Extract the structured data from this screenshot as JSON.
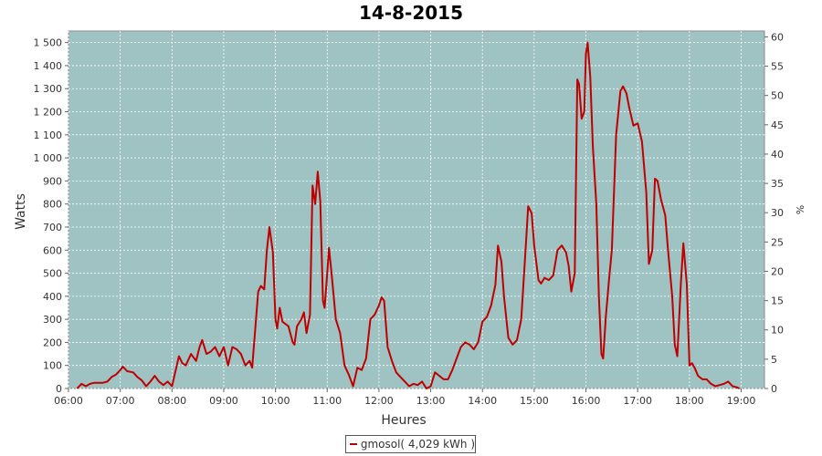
{
  "chart_data": {
    "type": "line",
    "title": "14-8-2015",
    "xlabel": "Heures",
    "ylabel": "Watts",
    "ylabel_right": "%",
    "ylim": [
      0,
      1550
    ],
    "y2lim": [
      0,
      61
    ],
    "xlim_hours": [
      6.0,
      19.45
    ],
    "grid": true,
    "background": "#9fc3c3",
    "line_color": "#c00000",
    "x_ticks": [
      "06:00",
      "07:00",
      "08:00",
      "09:00",
      "10:00",
      "11:00",
      "12:00",
      "13:00",
      "14:00",
      "15:00",
      "16:00",
      "17:00",
      "18:00",
      "19:00"
    ],
    "y_ticks": [
      {
        "value": 0,
        "label": "0"
      },
      {
        "value": 100,
        "label": "100"
      },
      {
        "value": 200,
        "label": "200"
      },
      {
        "value": 300,
        "label": "300"
      },
      {
        "value": 400,
        "label": "400"
      },
      {
        "value": 500,
        "label": "500"
      },
      {
        "value": 600,
        "label": "600"
      },
      {
        "value": 700,
        "label": "700"
      },
      {
        "value": 800,
        "label": "800"
      },
      {
        "value": 900,
        "label": "900"
      },
      {
        "value": 1000,
        "label": "1 000"
      },
      {
        "value": 1100,
        "label": "1 100"
      },
      {
        "value": 1200,
        "label": "1 200"
      },
      {
        "value": 1300,
        "label": "1 300"
      },
      {
        "value": 1400,
        "label": "1 400"
      },
      {
        "value": 1500,
        "label": "1 500"
      }
    ],
    "y2_ticks": [
      "0",
      "5",
      "10",
      "15",
      "20",
      "25",
      "30",
      "35",
      "40",
      "45",
      "50",
      "55",
      "60"
    ],
    "series": [
      {
        "name": "gmosol( 4,029 kWh )",
        "points": [
          [
            "06:10",
            0
          ],
          [
            "06:15",
            20
          ],
          [
            "06:20",
            10
          ],
          [
            "06:25",
            20
          ],
          [
            "06:30",
            25
          ],
          [
            "06:40",
            25
          ],
          [
            "06:45",
            30
          ],
          [
            "06:50",
            50
          ],
          [
            "06:55",
            60
          ],
          [
            "07:00",
            80
          ],
          [
            "07:03",
            95
          ],
          [
            "07:08",
            75
          ],
          [
            "07:15",
            70
          ],
          [
            "07:20",
            50
          ],
          [
            "07:25",
            35
          ],
          [
            "07:30",
            10
          ],
          [
            "07:35",
            30
          ],
          [
            "07:40",
            55
          ],
          [
            "07:45",
            30
          ],
          [
            "07:50",
            15
          ],
          [
            "07:55",
            30
          ],
          [
            "08:00",
            10
          ],
          [
            "08:05",
            90
          ],
          [
            "08:08",
            140
          ],
          [
            "08:12",
            110
          ],
          [
            "08:16",
            100
          ],
          [
            "08:22",
            150
          ],
          [
            "08:28",
            120
          ],
          [
            "08:32",
            180
          ],
          [
            "08:35",
            210
          ],
          [
            "08:40",
            150
          ],
          [
            "08:45",
            160
          ],
          [
            "08:50",
            180
          ],
          [
            "08:55",
            140
          ],
          [
            "09:00",
            180
          ],
          [
            "09:05",
            100
          ],
          [
            "09:10",
            180
          ],
          [
            "09:15",
            170
          ],
          [
            "09:20",
            150
          ],
          [
            "09:25",
            100
          ],
          [
            "09:30",
            120
          ],
          [
            "09:33",
            90
          ],
          [
            "09:37",
            280
          ],
          [
            "09:40",
            420
          ],
          [
            "09:43",
            445
          ],
          [
            "09:47",
            430
          ],
          [
            "09:50",
            600
          ],
          [
            "09:53",
            700
          ],
          [
            "09:57",
            590
          ],
          [
            "10:00",
            300
          ],
          [
            "10:02",
            260
          ],
          [
            "10:05",
            350
          ],
          [
            "10:08",
            290
          ],
          [
            "10:15",
            270
          ],
          [
            "10:20",
            200
          ],
          [
            "10:22",
            190
          ],
          [
            "10:25",
            270
          ],
          [
            "10:30",
            300
          ],
          [
            "10:33",
            330
          ],
          [
            "10:36",
            240
          ],
          [
            "10:40",
            320
          ],
          [
            "10:43",
            880
          ],
          [
            "10:46",
            800
          ],
          [
            "10:49",
            940
          ],
          [
            "10:52",
            810
          ],
          [
            "10:55",
            380
          ],
          [
            "10:57",
            350
          ],
          [
            "11:00",
            500
          ],
          [
            "11:02",
            610
          ],
          [
            "11:05",
            500
          ],
          [
            "11:10",
            300
          ],
          [
            "11:15",
            240
          ],
          [
            "11:20",
            100
          ],
          [
            "11:25",
            60
          ],
          [
            "11:30",
            10
          ],
          [
            "11:35",
            90
          ],
          [
            "11:40",
            80
          ],
          [
            "11:45",
            130
          ],
          [
            "11:50",
            300
          ],
          [
            "11:55",
            320
          ],
          [
            "12:00",
            360
          ],
          [
            "12:03",
            395
          ],
          [
            "12:06",
            380
          ],
          [
            "12:10",
            180
          ],
          [
            "12:15",
            120
          ],
          [
            "12:20",
            70
          ],
          [
            "12:25",
            50
          ],
          [
            "12:30",
            30
          ],
          [
            "12:35",
            10
          ],
          [
            "12:40",
            20
          ],
          [
            "12:45",
            15
          ],
          [
            "12:50",
            30
          ],
          [
            "12:55",
            0
          ],
          [
            "13:00",
            10
          ],
          [
            "13:05",
            70
          ],
          [
            "13:10",
            55
          ],
          [
            "13:15",
            40
          ],
          [
            "13:20",
            40
          ],
          [
            "13:25",
            80
          ],
          [
            "13:30",
            130
          ],
          [
            "13:35",
            180
          ],
          [
            "13:40",
            200
          ],
          [
            "13:45",
            190
          ],
          [
            "13:50",
            170
          ],
          [
            "13:55",
            200
          ],
          [
            "14:00",
            290
          ],
          [
            "14:05",
            310
          ],
          [
            "14:10",
            360
          ],
          [
            "14:15",
            450
          ],
          [
            "14:18",
            620
          ],
          [
            "14:22",
            550
          ],
          [
            "14:25",
            400
          ],
          [
            "14:30",
            220
          ],
          [
            "14:35",
            190
          ],
          [
            "14:40",
            210
          ],
          [
            "14:45",
            300
          ],
          [
            "14:50",
            600
          ],
          [
            "14:53",
            790
          ],
          [
            "14:57",
            760
          ],
          [
            "15:00",
            620
          ],
          [
            "15:05",
            470
          ],
          [
            "15:08",
            455
          ],
          [
            "15:12",
            480
          ],
          [
            "15:17",
            470
          ],
          [
            "15:22",
            490
          ],
          [
            "15:27",
            600
          ],
          [
            "15:32",
            620
          ],
          [
            "15:37",
            590
          ],
          [
            "15:40",
            530
          ],
          [
            "15:43",
            420
          ],
          [
            "15:47",
            500
          ],
          [
            "15:50",
            1340
          ],
          [
            "15:52",
            1320
          ],
          [
            "15:55",
            1170
          ],
          [
            "15:58",
            1200
          ],
          [
            "16:00",
            1450
          ],
          [
            "16:02",
            1500
          ],
          [
            "16:05",
            1350
          ],
          [
            "16:08",
            1050
          ],
          [
            "16:12",
            800
          ],
          [
            "16:15",
            400
          ],
          [
            "16:18",
            150
          ],
          [
            "16:20",
            130
          ],
          [
            "16:23",
            310
          ],
          [
            "16:27",
            480
          ],
          [
            "16:30",
            600
          ],
          [
            "16:35",
            1100
          ],
          [
            "16:40",
            1290
          ],
          [
            "16:43",
            1310
          ],
          [
            "16:47",
            1280
          ],
          [
            "16:50",
            1220
          ],
          [
            "16:55",
            1140
          ],
          [
            "17:00",
            1150
          ],
          [
            "17:05",
            1070
          ],
          [
            "17:10",
            850
          ],
          [
            "17:13",
            540
          ],
          [
            "17:17",
            600
          ],
          [
            "17:20",
            910
          ],
          [
            "17:23",
            900
          ],
          [
            "17:27",
            820
          ],
          [
            "17:32",
            750
          ],
          [
            "17:35",
            610
          ],
          [
            "17:40",
            400
          ],
          [
            "17:43",
            190
          ],
          [
            "17:46",
            140
          ],
          [
            "17:50",
            450
          ],
          [
            "17:53",
            630
          ],
          [
            "17:57",
            450
          ],
          [
            "18:00",
            100
          ],
          [
            "18:03",
            110
          ],
          [
            "18:06",
            90
          ],
          [
            "18:10",
            55
          ],
          [
            "18:15",
            40
          ],
          [
            "18:20",
            40
          ],
          [
            "18:25",
            20
          ],
          [
            "18:30",
            10
          ],
          [
            "18:35",
            15
          ],
          [
            "18:40",
            20
          ],
          [
            "18:45",
            30
          ],
          [
            "18:50",
            10
          ],
          [
            "18:55",
            5
          ],
          [
            "18:58",
            0
          ]
        ]
      }
    ]
  }
}
